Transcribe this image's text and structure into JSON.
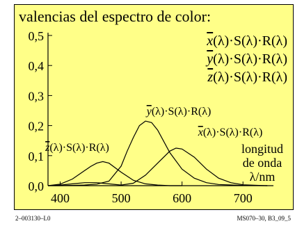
{
  "footer": {
    "left": "2–003130–L0",
    "right": "MS070–30, B3_09_5"
  },
  "chart_data": {
    "type": "line",
    "title": "valencias del espectro de color:",
    "legend": [
      {
        "bar": "x",
        "rest": "(λ)·S(λ)·R(λ)"
      },
      {
        "bar": "y",
        "rest": "(λ)·S(λ)·R(λ)"
      },
      {
        "bar": "z",
        "rest": "(λ)·S(λ)·R(λ)"
      }
    ],
    "xlabel": [
      "longitud",
      "de onda",
      "λ/nm"
    ],
    "xlim": [
      380,
      750
    ],
    "ylim": [
      0,
      0.5
    ],
    "xticks": [
      400,
      500,
      600,
      700
    ],
    "yticks": [
      "0,0",
      "0,1",
      "0,2",
      "0,3",
      "0,4",
      "0,5"
    ],
    "yticks_values": [
      0,
      0.1,
      0.2,
      0.3,
      0.4,
      0.5
    ],
    "series": [
      {
        "name_bar": "z",
        "name_rest": "(λ)·S(λ)·R(λ)",
        "x": [
          380,
          400,
          420,
          440,
          450,
          460,
          470,
          480,
          500,
          520,
          540,
          560,
          580,
          600
        ],
        "values": [
          0.0,
          0.005,
          0.022,
          0.05,
          0.064,
          0.075,
          0.08,
          0.075,
          0.045,
          0.018,
          0.006,
          0.002,
          0.0,
          0.0
        ]
      },
      {
        "name_bar": "y",
        "name_rest": "(λ)·S(λ)·R(λ)",
        "x": [
          380,
          400,
          440,
          460,
          480,
          500,
          510,
          520,
          530,
          540,
          550,
          560,
          580,
          600,
          620,
          640,
          660,
          700,
          740
        ],
        "values": [
          0.0,
          0.0,
          0.002,
          0.005,
          0.015,
          0.065,
          0.115,
          0.16,
          0.2,
          0.215,
          0.21,
          0.185,
          0.11,
          0.055,
          0.025,
          0.01,
          0.004,
          0.001,
          0.0
        ]
      },
      {
        "name_bar": "x",
        "name_rest": "(λ)·S(λ)·R(λ)",
        "x": [
          380,
          400,
          420,
          440,
          460,
          480,
          500,
          520,
          540,
          560,
          580,
          590,
          600,
          620,
          640,
          660,
          680,
          700,
          740
        ],
        "values": [
          0.0,
          0.002,
          0.006,
          0.01,
          0.01,
          0.006,
          0.002,
          0.008,
          0.035,
          0.075,
          0.115,
          0.125,
          0.122,
          0.095,
          0.055,
          0.025,
          0.01,
          0.003,
          0.0
        ]
      }
    ]
  }
}
